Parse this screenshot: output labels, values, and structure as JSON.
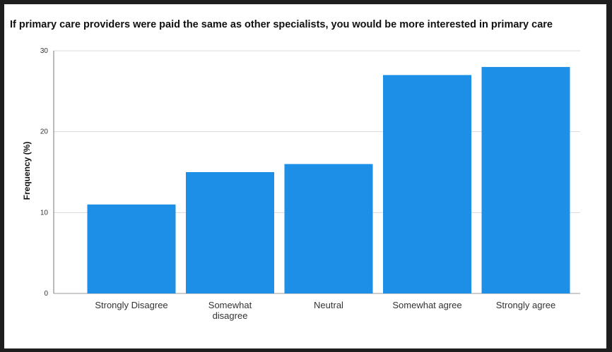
{
  "chart_data": {
    "type": "bar",
    "title": "If primary care providers were paid the same as other specialists, you would be more interested in primary care",
    "xlabel": "",
    "ylabel": "Frequency (%)",
    "categories": [
      "Strongly Disagree",
      "Somewhat disagree",
      "Neutral",
      "Somewhat agree",
      "Strongly agree"
    ],
    "category_lines": [
      [
        "Strongly Disagree"
      ],
      [
        "Somewhat",
        "disagree"
      ],
      [
        "Neutral"
      ],
      [
        "Somewhat agree"
      ],
      [
        "Strongly agree"
      ]
    ],
    "values": [
      11,
      15,
      16,
      27,
      28
    ],
    "ylim": [
      0,
      30
    ],
    "yticks": [
      0,
      10,
      20,
      30
    ],
    "grid": true,
    "bar_color": "#1d8fe6",
    "legend": "none"
  }
}
